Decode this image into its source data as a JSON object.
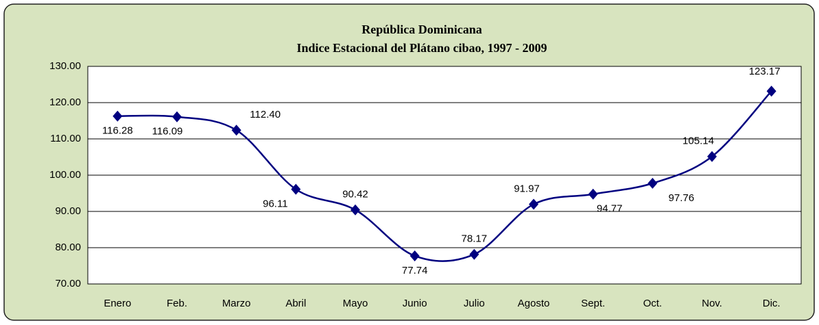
{
  "chart_data": {
    "type": "line",
    "title": "República Dominicana",
    "subtitle": "Indice Estacional del  Plátano cibao,  1997 - 2009",
    "categories": [
      "Enero",
      "Feb.",
      "Marzo",
      "Abril",
      "Mayo",
      "Junio",
      "Julio",
      "Agosto",
      "Sept.",
      "Oct.",
      "Nov.",
      "Dic."
    ],
    "series": [
      {
        "name": "Indice Estacional",
        "color": "#000080",
        "values": [
          116.28,
          116.09,
          112.4,
          96.11,
          90.42,
          77.74,
          78.17,
          91.97,
          94.77,
          97.76,
          105.14,
          123.17
        ],
        "value_labels": [
          "116.28",
          "116.09",
          "112.40",
          "96.11",
          "90.42",
          "77.74",
          "78.17",
          "91.97",
          "94.77",
          "97.76",
          "105.14",
          "123.17"
        ]
      }
    ],
    "ylim": [
      70,
      130
    ],
    "yticks": [
      {
        "value": 70,
        "label": "70.00"
      },
      {
        "value": 80,
        "label": "80.00"
      },
      {
        "value": 90,
        "label": "90.00"
      },
      {
        "value": 100,
        "label": "100.00"
      },
      {
        "value": 110,
        "label": "110.00"
      },
      {
        "value": 120,
        "label": "120.00"
      },
      {
        "value": 130,
        "label": "130.00"
      }
    ],
    "grid": true
  }
}
